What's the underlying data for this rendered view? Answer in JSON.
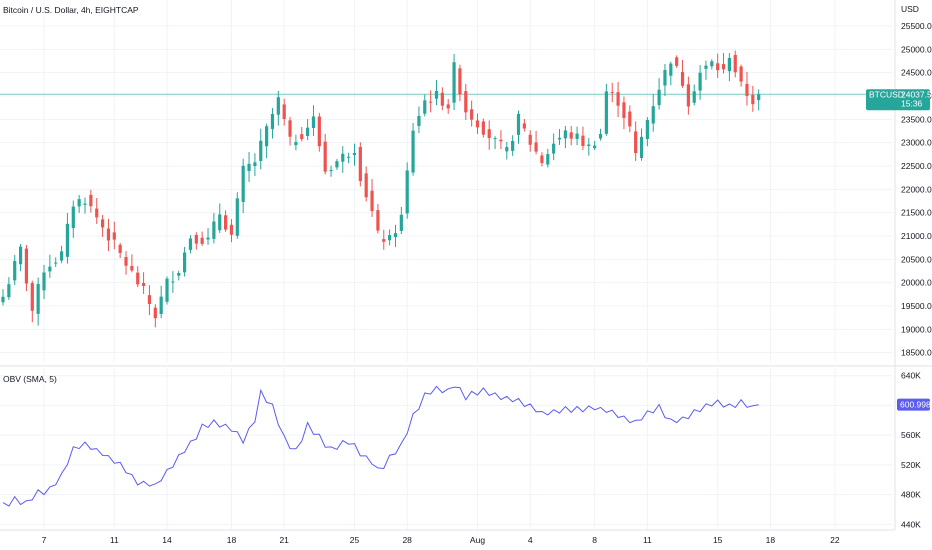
{
  "colors": {
    "up": "#26a69a",
    "down": "#ef5350",
    "obv_line": "#5b5cf0",
    "grid": "#f0f3fa",
    "price_line": "#26a69a",
    "text": "#131722",
    "axis_border": "#e0e3eb"
  },
  "header": {
    "title": "Bitcoin / U.S. Dollar, 4h, EIGHTCAP"
  },
  "price_pane": {
    "currency_label": "USD",
    "price_tag": {
      "symbol": "BTCUSD",
      "price": "24037.50",
      "countdown": "15:36"
    },
    "current_price": 24037.5
  },
  "obv_pane": {
    "label": "OBV (SMA, 5)",
    "value_tag": "600.998K",
    "current_value": 600.998
  },
  "chart_data": [
    {
      "type": "candlestick",
      "title": "Bitcoin / U.S. Dollar, 4h, EIGHTCAP",
      "ylabel": "USD",
      "ylim": [
        18300,
        25800
      ],
      "yticks": [
        18500,
        19000,
        19500,
        20000,
        20500,
        21000,
        21500,
        22000,
        22500,
        23000,
        23500,
        24000,
        24500,
        25000,
        25500
      ],
      "ytick_labels": [
        "18500.00",
        "19000.00",
        "19500.00",
        "20000.00",
        "20500.00",
        "21000.00",
        "21500.00",
        "22000.00",
        "22500.00",
        "23000.00",
        "23500.00",
        "24000.00",
        "24500.00",
        "25000.00",
        "25500.00"
      ],
      "xtick_labels": [
        "7",
        "11",
        "14",
        "18",
        "21",
        "25",
        "28",
        "Aug",
        "4",
        "8",
        "11",
        "15",
        "18",
        "22"
      ],
      "xtick_bar_index": [
        7,
        19,
        28,
        39,
        48,
        60,
        69,
        81,
        90,
        101,
        110,
        122,
        131,
        142
      ],
      "close_anchors": [
        {
          "bar": 0,
          "close": 19700
        },
        {
          "bar": 3,
          "close": 20700
        },
        {
          "bar": 5,
          "close": 19400
        },
        {
          "bar": 7,
          "close": 20300
        },
        {
          "bar": 10,
          "close": 20600
        },
        {
          "bar": 12,
          "close": 21700
        },
        {
          "bar": 14,
          "close": 21800
        },
        {
          "bar": 17,
          "close": 21200
        },
        {
          "bar": 19,
          "close": 20800
        },
        {
          "bar": 21,
          "close": 20400
        },
        {
          "bar": 24,
          "close": 19800
        },
        {
          "bar": 26,
          "close": 19300
        },
        {
          "bar": 28,
          "close": 20000
        },
        {
          "bar": 30,
          "close": 20300
        },
        {
          "bar": 32,
          "close": 21000
        },
        {
          "bar": 35,
          "close": 20900
        },
        {
          "bar": 37,
          "close": 21500
        },
        {
          "bar": 39,
          "close": 21000
        },
        {
          "bar": 41,
          "close": 22400
        },
        {
          "bar": 43,
          "close": 22600
        },
        {
          "bar": 46,
          "close": 23600
        },
        {
          "bar": 47,
          "close": 23900
        },
        {
          "bar": 49,
          "close": 23000
        },
        {
          "bar": 51,
          "close": 23200
        },
        {
          "bar": 53,
          "close": 23500
        },
        {
          "bar": 55,
          "close": 22400
        },
        {
          "bar": 58,
          "close": 22700
        },
        {
          "bar": 60,
          "close": 22900
        },
        {
          "bar": 61,
          "close": 22300
        },
        {
          "bar": 63,
          "close": 21500
        },
        {
          "bar": 64,
          "close": 21000
        },
        {
          "bar": 66,
          "close": 20900
        },
        {
          "bar": 68,
          "close": 21400
        },
        {
          "bar": 70,
          "close": 23300
        },
        {
          "bar": 72,
          "close": 23900
        },
        {
          "bar": 74,
          "close": 24000
        },
        {
          "bar": 76,
          "close": 23800
        },
        {
          "bar": 77,
          "close": 24600
        },
        {
          "bar": 79,
          "close": 23700
        },
        {
          "bar": 82,
          "close": 23300
        },
        {
          "bar": 84,
          "close": 23000
        },
        {
          "bar": 86,
          "close": 22800
        },
        {
          "bar": 88,
          "close": 23500
        },
        {
          "bar": 90,
          "close": 23000
        },
        {
          "bar": 92,
          "close": 22600
        },
        {
          "bar": 94,
          "close": 23000
        },
        {
          "bar": 96,
          "close": 23200
        },
        {
          "bar": 98,
          "close": 23100
        },
        {
          "bar": 100,
          "close": 22900
        },
        {
          "bar": 102,
          "close": 23200
        },
        {
          "bar": 103,
          "close": 24100
        },
        {
          "bar": 105,
          "close": 23900
        },
        {
          "bar": 107,
          "close": 23300
        },
        {
          "bar": 108,
          "close": 22700
        },
        {
          "bar": 110,
          "close": 23500
        },
        {
          "bar": 112,
          "close": 24200
        },
        {
          "bar": 114,
          "close": 24800
        },
        {
          "bar": 116,
          "close": 24300
        },
        {
          "bar": 117,
          "close": 23900
        },
        {
          "bar": 119,
          "close": 24500
        },
        {
          "bar": 121,
          "close": 24700
        },
        {
          "bar": 123,
          "close": 24500
        },
        {
          "bar": 124,
          "close": 24900
        },
        {
          "bar": 126,
          "close": 24200
        },
        {
          "bar": 128,
          "close": 23900
        },
        {
          "bar": 129,
          "close": 24037.5
        }
      ]
    },
    {
      "type": "line",
      "title": "OBV (SMA, 5)",
      "ylim": [
        435,
        645
      ],
      "yticks": [
        440,
        480,
        520,
        560,
        600,
        640
      ],
      "ytick_labels": [
        "440K",
        "480K",
        "520K",
        "560K",
        "600K",
        "640K"
      ],
      "series": [
        {
          "name": "OBV (SMA, 5)",
          "anchors": [
            {
              "bar": 0,
              "value": 465
            },
            {
              "bar": 2,
              "value": 473
            },
            {
              "bar": 4,
              "value": 468
            },
            {
              "bar": 6,
              "value": 482
            },
            {
              "bar": 8,
              "value": 488
            },
            {
              "bar": 10,
              "value": 505
            },
            {
              "bar": 12,
              "value": 542
            },
            {
              "bar": 14,
              "value": 548
            },
            {
              "bar": 17,
              "value": 535
            },
            {
              "bar": 20,
              "value": 520
            },
            {
              "bar": 23,
              "value": 497
            },
            {
              "bar": 26,
              "value": 492
            },
            {
              "bar": 28,
              "value": 510
            },
            {
              "bar": 30,
              "value": 530
            },
            {
              "bar": 32,
              "value": 548
            },
            {
              "bar": 34,
              "value": 570
            },
            {
              "bar": 36,
              "value": 577
            },
            {
              "bar": 39,
              "value": 570
            },
            {
              "bar": 41,
              "value": 552
            },
            {
              "bar": 43,
              "value": 580
            },
            {
              "bar": 44,
              "value": 618
            },
            {
              "bar": 46,
              "value": 598
            },
            {
              "bar": 48,
              "value": 555
            },
            {
              "bar": 50,
              "value": 537
            },
            {
              "bar": 52,
              "value": 573
            },
            {
              "bar": 54,
              "value": 557
            },
            {
              "bar": 56,
              "value": 540
            },
            {
              "bar": 59,
              "value": 552
            },
            {
              "bar": 61,
              "value": 537
            },
            {
              "bar": 63,
              "value": 523
            },
            {
              "bar": 64,
              "value": 512
            },
            {
              "bar": 66,
              "value": 528
            },
            {
              "bar": 68,
              "value": 547
            },
            {
              "bar": 70,
              "value": 586
            },
            {
              "bar": 72,
              "value": 612
            },
            {
              "bar": 74,
              "value": 623
            },
            {
              "bar": 76,
              "value": 620
            },
            {
              "bar": 77,
              "value": 627
            },
            {
              "bar": 79,
              "value": 612
            },
            {
              "bar": 82,
              "value": 620
            },
            {
              "bar": 85,
              "value": 612
            },
            {
              "bar": 88,
              "value": 605
            },
            {
              "bar": 90,
              "value": 600
            },
            {
              "bar": 92,
              "value": 588
            },
            {
              "bar": 95,
              "value": 593
            },
            {
              "bar": 98,
              "value": 595
            },
            {
              "bar": 101,
              "value": 597
            },
            {
              "bar": 104,
              "value": 591
            },
            {
              "bar": 106,
              "value": 583
            },
            {
              "bar": 108,
              "value": 578
            },
            {
              "bar": 110,
              "value": 588
            },
            {
              "bar": 112,
              "value": 598
            },
            {
              "bar": 114,
              "value": 577
            },
            {
              "bar": 116,
              "value": 582
            },
            {
              "bar": 118,
              "value": 592
            },
            {
              "bar": 120,
              "value": 600
            },
            {
              "bar": 122,
              "value": 605
            },
            {
              "bar": 124,
              "value": 598
            },
            {
              "bar": 126,
              "value": 603
            },
            {
              "bar": 128,
              "value": 597
            },
            {
              "bar": 129,
              "value": 601
            }
          ]
        }
      ]
    }
  ]
}
